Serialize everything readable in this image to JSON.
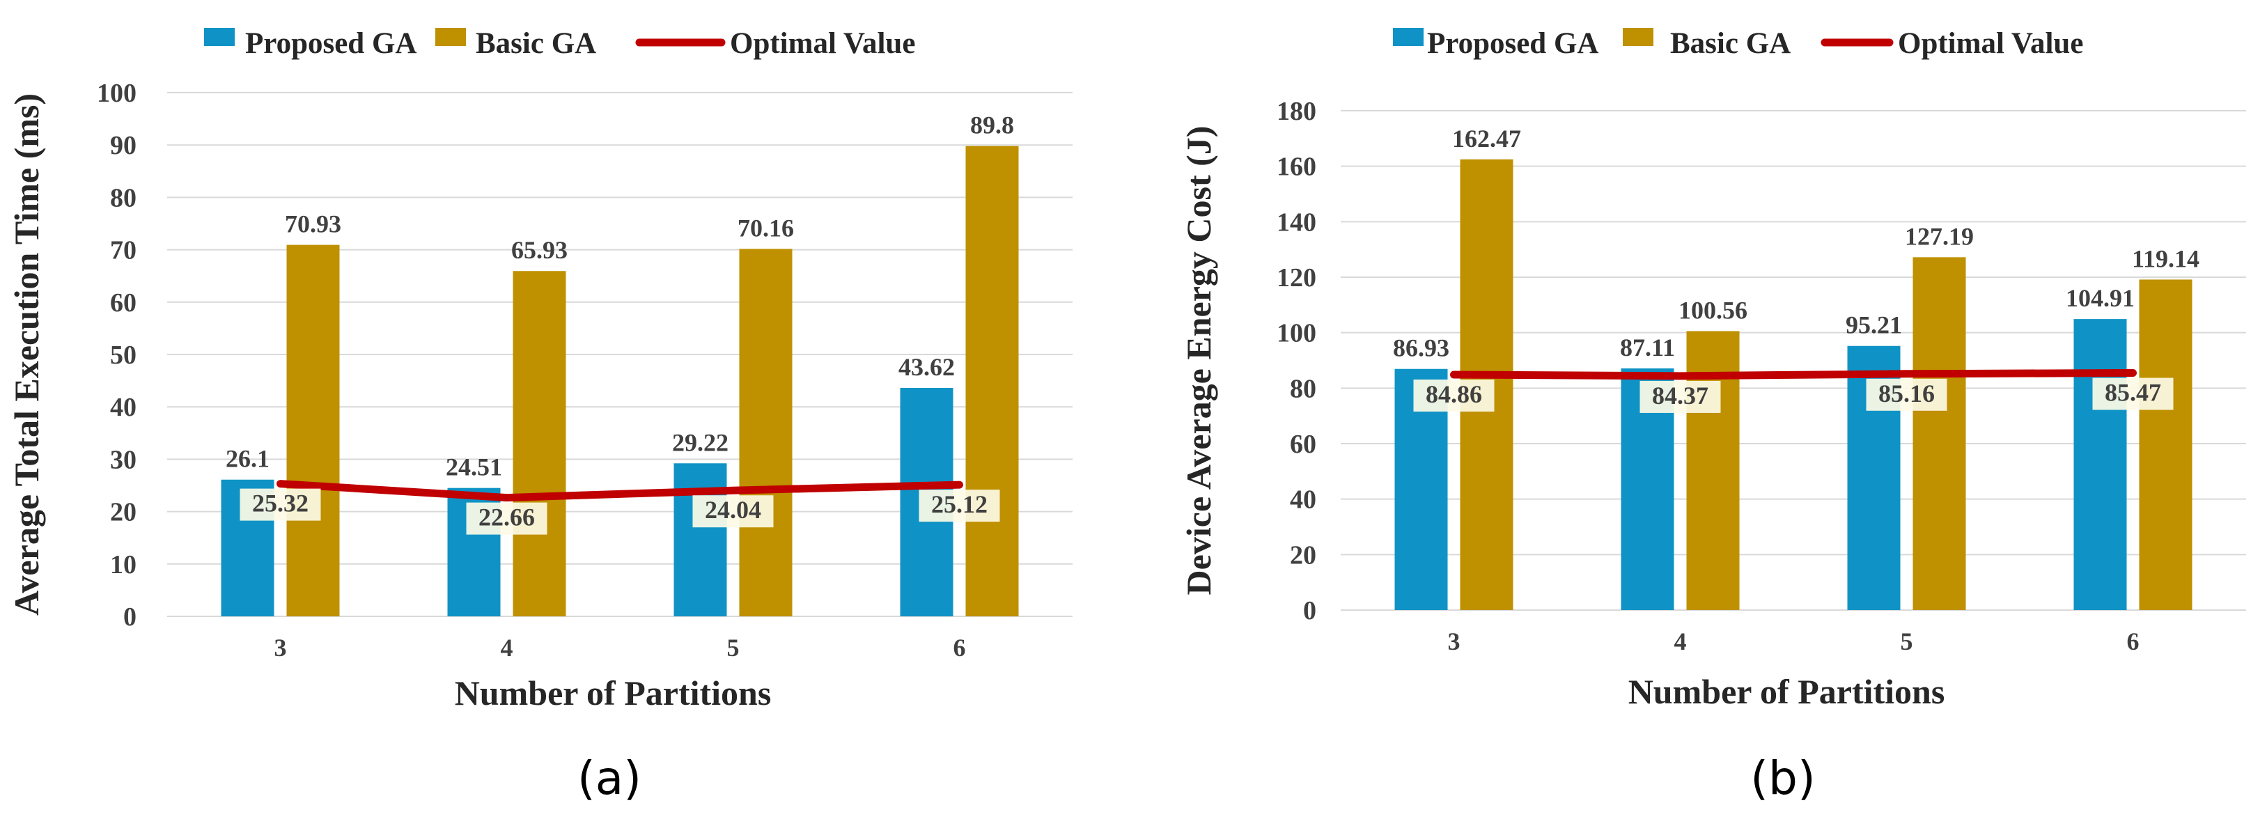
{
  "colors": {
    "proposed": "#0f93c6",
    "basic": "#bf9000",
    "optimal": "#c00000",
    "grid": "#d9d9d9",
    "label_box": "#fdfbe6"
  },
  "legend": {
    "proposed": "Proposed GA",
    "basic": "Basic GA",
    "optimal": "Optimal Value"
  },
  "chart_data": [
    {
      "type": "bar",
      "panel_label": "(a)",
      "xlabel": "Number of Partitions",
      "ylabel": "Average Total Execution Time (ms)",
      "ylim": [
        0,
        100
      ],
      "yticks": [
        "0",
        "10",
        "20",
        "30",
        "40",
        "50",
        "60",
        "70",
        "80",
        "90",
        "100"
      ],
      "categories": [
        "3",
        "4",
        "5",
        "6"
      ],
      "series": [
        {
          "name": "Proposed GA",
          "kind": "bar",
          "values": [
            26.1,
            24.51,
            29.22,
            43.62
          ],
          "labels": [
            "26.1",
            "24.51",
            "29.22",
            "43.62"
          ]
        },
        {
          "name": "Basic GA",
          "kind": "bar",
          "values": [
            70.93,
            65.93,
            70.16,
            89.8
          ],
          "labels": [
            "70.93",
            "65.93",
            "70.16",
            "89.8"
          ]
        },
        {
          "name": "Optimal Value",
          "kind": "line",
          "values": [
            25.32,
            22.66,
            24.04,
            25.12
          ],
          "labels": [
            "25.32",
            "22.66",
            "24.04",
            "25.12"
          ]
        }
      ],
      "grid": true,
      "legend_position": "top"
    },
    {
      "type": "bar",
      "panel_label": "(b)",
      "xlabel": "Number of Partitions",
      "ylabel": "Device Average Energy Cost (J)",
      "ylim": [
        0,
        180
      ],
      "yticks": [
        "0",
        "20",
        "40",
        "60",
        "80",
        "100",
        "120",
        "140",
        "160",
        "180"
      ],
      "categories": [
        "3",
        "4",
        "5",
        "6"
      ],
      "series": [
        {
          "name": "Proposed GA",
          "kind": "bar",
          "values": [
            86.93,
            87.11,
            95.21,
            104.91
          ],
          "labels": [
            "86.93",
            "87.11",
            "95.21",
            "104.91"
          ]
        },
        {
          "name": "Basic GA",
          "kind": "bar",
          "values": [
            162.47,
            100.56,
            127.19,
            119.14
          ],
          "labels": [
            "162.47",
            "100.56",
            "127.19",
            "119.14"
          ]
        },
        {
          "name": "Optimal Value",
          "kind": "line",
          "values": [
            84.86,
            84.37,
            85.16,
            85.47
          ],
          "labels": [
            "84.86",
            "84.37",
            "85.16",
            "85.47"
          ]
        }
      ],
      "grid": true,
      "legend_position": "top"
    }
  ]
}
